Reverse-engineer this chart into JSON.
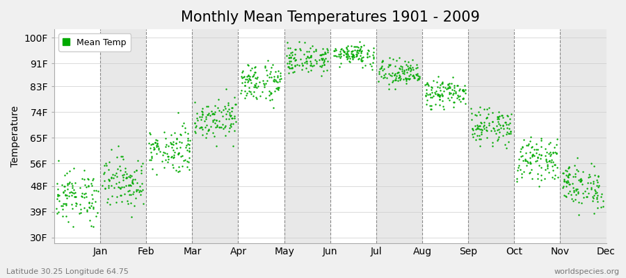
{
  "title": "Monthly Mean Temperatures 1901 - 2009",
  "ylabel": "Temperature",
  "bottom_left": "Latitude 30.25 Longitude 64.75",
  "bottom_right": "worldspecies.org",
  "legend_label": "Mean Temp",
  "dot_color": "#00aa00",
  "dot_size": 3,
  "yticks": [
    30,
    39,
    48,
    56,
    65,
    74,
    83,
    91,
    100
  ],
  "ytick_labels": [
    "30F",
    "39F",
    "48F",
    "56F",
    "65F",
    "74F",
    "83F",
    "91F",
    "100F"
  ],
  "ylim": [
    28,
    103
  ],
  "months": [
    "Jan",
    "Feb",
    "Mar",
    "Apr",
    "May",
    "Jun",
    "Jul",
    "Aug",
    "Sep",
    "Oct",
    "Nov",
    "Dec"
  ],
  "bg_color": "#f0f0f0",
  "col_colors": [
    "#ffffff",
    "#e8e8e8"
  ],
  "title_fontsize": 15,
  "axis_fontsize": 10,
  "tick_fontsize": 10,
  "monthly_mean_F": [
    44.5,
    49.5,
    61.0,
    72.0,
    84.5,
    92.5,
    94.5,
    87.5,
    80.5,
    69.0,
    57.5,
    48.0
  ],
  "monthly_std_F": [
    4.5,
    4.5,
    4.0,
    3.5,
    3.5,
    2.5,
    2.0,
    2.5,
    2.5,
    3.0,
    3.5,
    4.0
  ],
  "monthly_low_F": [
    33.0,
    35.0,
    50.0,
    62.0,
    75.0,
    86.0,
    89.0,
    82.0,
    75.0,
    61.0,
    48.0,
    37.0
  ],
  "monthly_high_F": [
    57.0,
    62.0,
    74.0,
    82.0,
    94.0,
    99.0,
    100.0,
    94.0,
    91.0,
    78.0,
    70.0,
    58.0
  ],
  "n_years": 109
}
